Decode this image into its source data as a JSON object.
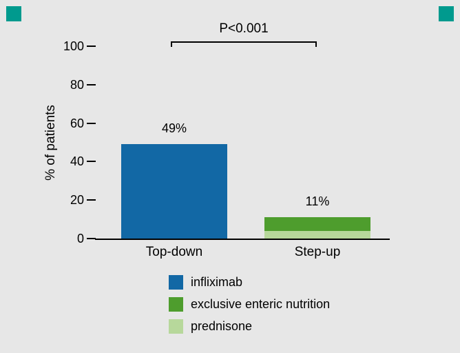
{
  "decor": {
    "corner_color": "#009a8e"
  },
  "chart_data": {
    "type": "bar",
    "stacked": true,
    "title": "",
    "xlabel": "",
    "ylabel": "% of patients",
    "ylim": [
      0,
      100
    ],
    "yticks": [
      0,
      20,
      40,
      60,
      80,
      100
    ],
    "grid": false,
    "categories": [
      "Top-down",
      "Step-up"
    ],
    "series": [
      {
        "name": "prednisone",
        "color": "#b7d89b",
        "values": [
          0,
          4
        ]
      },
      {
        "name": "exclusive enteric nutrition",
        "color": "#4e9d2d",
        "values": [
          0,
          7
        ]
      },
      {
        "name": "infliximab",
        "color": "#1268a5",
        "values": [
          49,
          0
        ]
      }
    ],
    "bar_totals": [
      49,
      11
    ],
    "bar_labels": [
      "49%",
      "11%"
    ],
    "annotation": {
      "text": "P<0.001"
    },
    "legend_position": "bottom",
    "legend": [
      {
        "label": "infliximab",
        "color": "#1268a5"
      },
      {
        "label": "exclusive enteric nutrition",
        "color": "#4e9d2d"
      },
      {
        "label": "prednisone",
        "color": "#b7d89b"
      }
    ]
  }
}
